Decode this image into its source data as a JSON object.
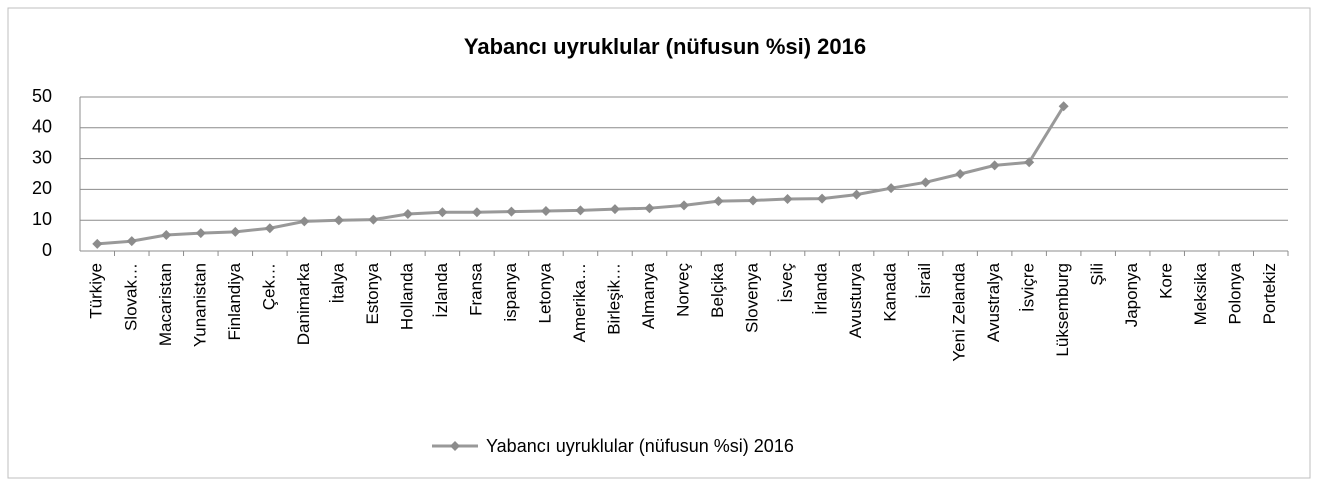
{
  "chart_data": {
    "type": "line",
    "title": "Yabancı uyruklular (nüfusun %si) 2016",
    "categories": [
      "Türkiye",
      "Slovak…",
      "Macaristan",
      "Yunanistan",
      "Finlandiya",
      "Çek…",
      "Danimarka",
      "İtalya",
      "Estonya",
      "Hollanda",
      "İzlanda",
      "Fransa",
      "ispanya",
      "Letonya",
      "Amerika…",
      "Birleşik…",
      "Almanya",
      "Norveç",
      "Belçika",
      "Slovenya",
      "İsveç",
      "İrlanda",
      "Avusturya",
      "Kanada",
      "İsrail",
      "Yeni Zelanda",
      "Avustralya",
      "İsviçre",
      "Lüksemburg",
      "Şili",
      "Japonya",
      "Kore",
      "Meksika",
      "Polonya",
      "Portekiz"
    ],
    "series": [
      {
        "name": "Yabancı uyruklular (nüfusun %si) 2016",
        "color": "#999999",
        "values": [
          2.3,
          3.2,
          5.2,
          5.8,
          6.2,
          7.4,
          9.6,
          10.0,
          10.2,
          12.0,
          12.6,
          12.6,
          12.8,
          13.0,
          13.2,
          13.6,
          13.9,
          14.8,
          16.2,
          16.4,
          16.9,
          17.0,
          18.3,
          20.4,
          22.3,
          25.0,
          27.8,
          28.8,
          47.0,
          null,
          null,
          null,
          null,
          null,
          null
        ]
      }
    ],
    "ylim": [
      0,
      50
    ],
    "yticks": [
      0,
      10,
      20,
      30,
      40,
      50
    ],
    "grid": true,
    "legend": "bottom"
  }
}
